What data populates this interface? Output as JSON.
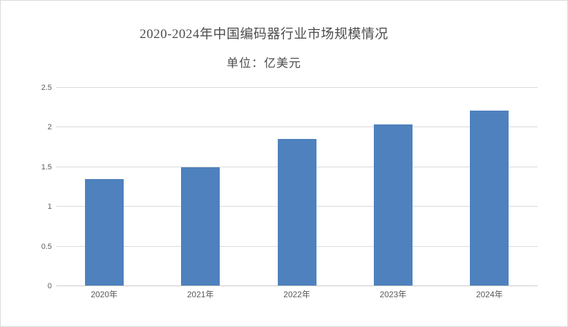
{
  "page": {
    "background_color": "#ffffff",
    "frame_border_color": "#d9d9d9"
  },
  "chart_data": {
    "type": "bar",
    "title": "2020-2024年中国编码器行业市场规模情况",
    "subtitle": "单位：亿美元",
    "categories": [
      "2020年",
      "2021年",
      "2022年",
      "2023年",
      "2024年"
    ],
    "values": [
      1.34,
      1.49,
      1.85,
      2.03,
      2.2
    ],
    "xlabel": "",
    "ylabel": "",
    "ylim": [
      0,
      2.5
    ],
    "ytick_interval": 0.5,
    "yticks": [
      "0",
      "0.5",
      "1",
      "1.5",
      "2",
      "2.5"
    ],
    "grid": true,
    "legend_position": "none",
    "bar_color": "#4e81bd",
    "gridline_color": "#d9d9d9",
    "axis_line_color": "#c9c9c9",
    "tick_label_color": "#595959",
    "title_color": "#4d4d4d"
  }
}
